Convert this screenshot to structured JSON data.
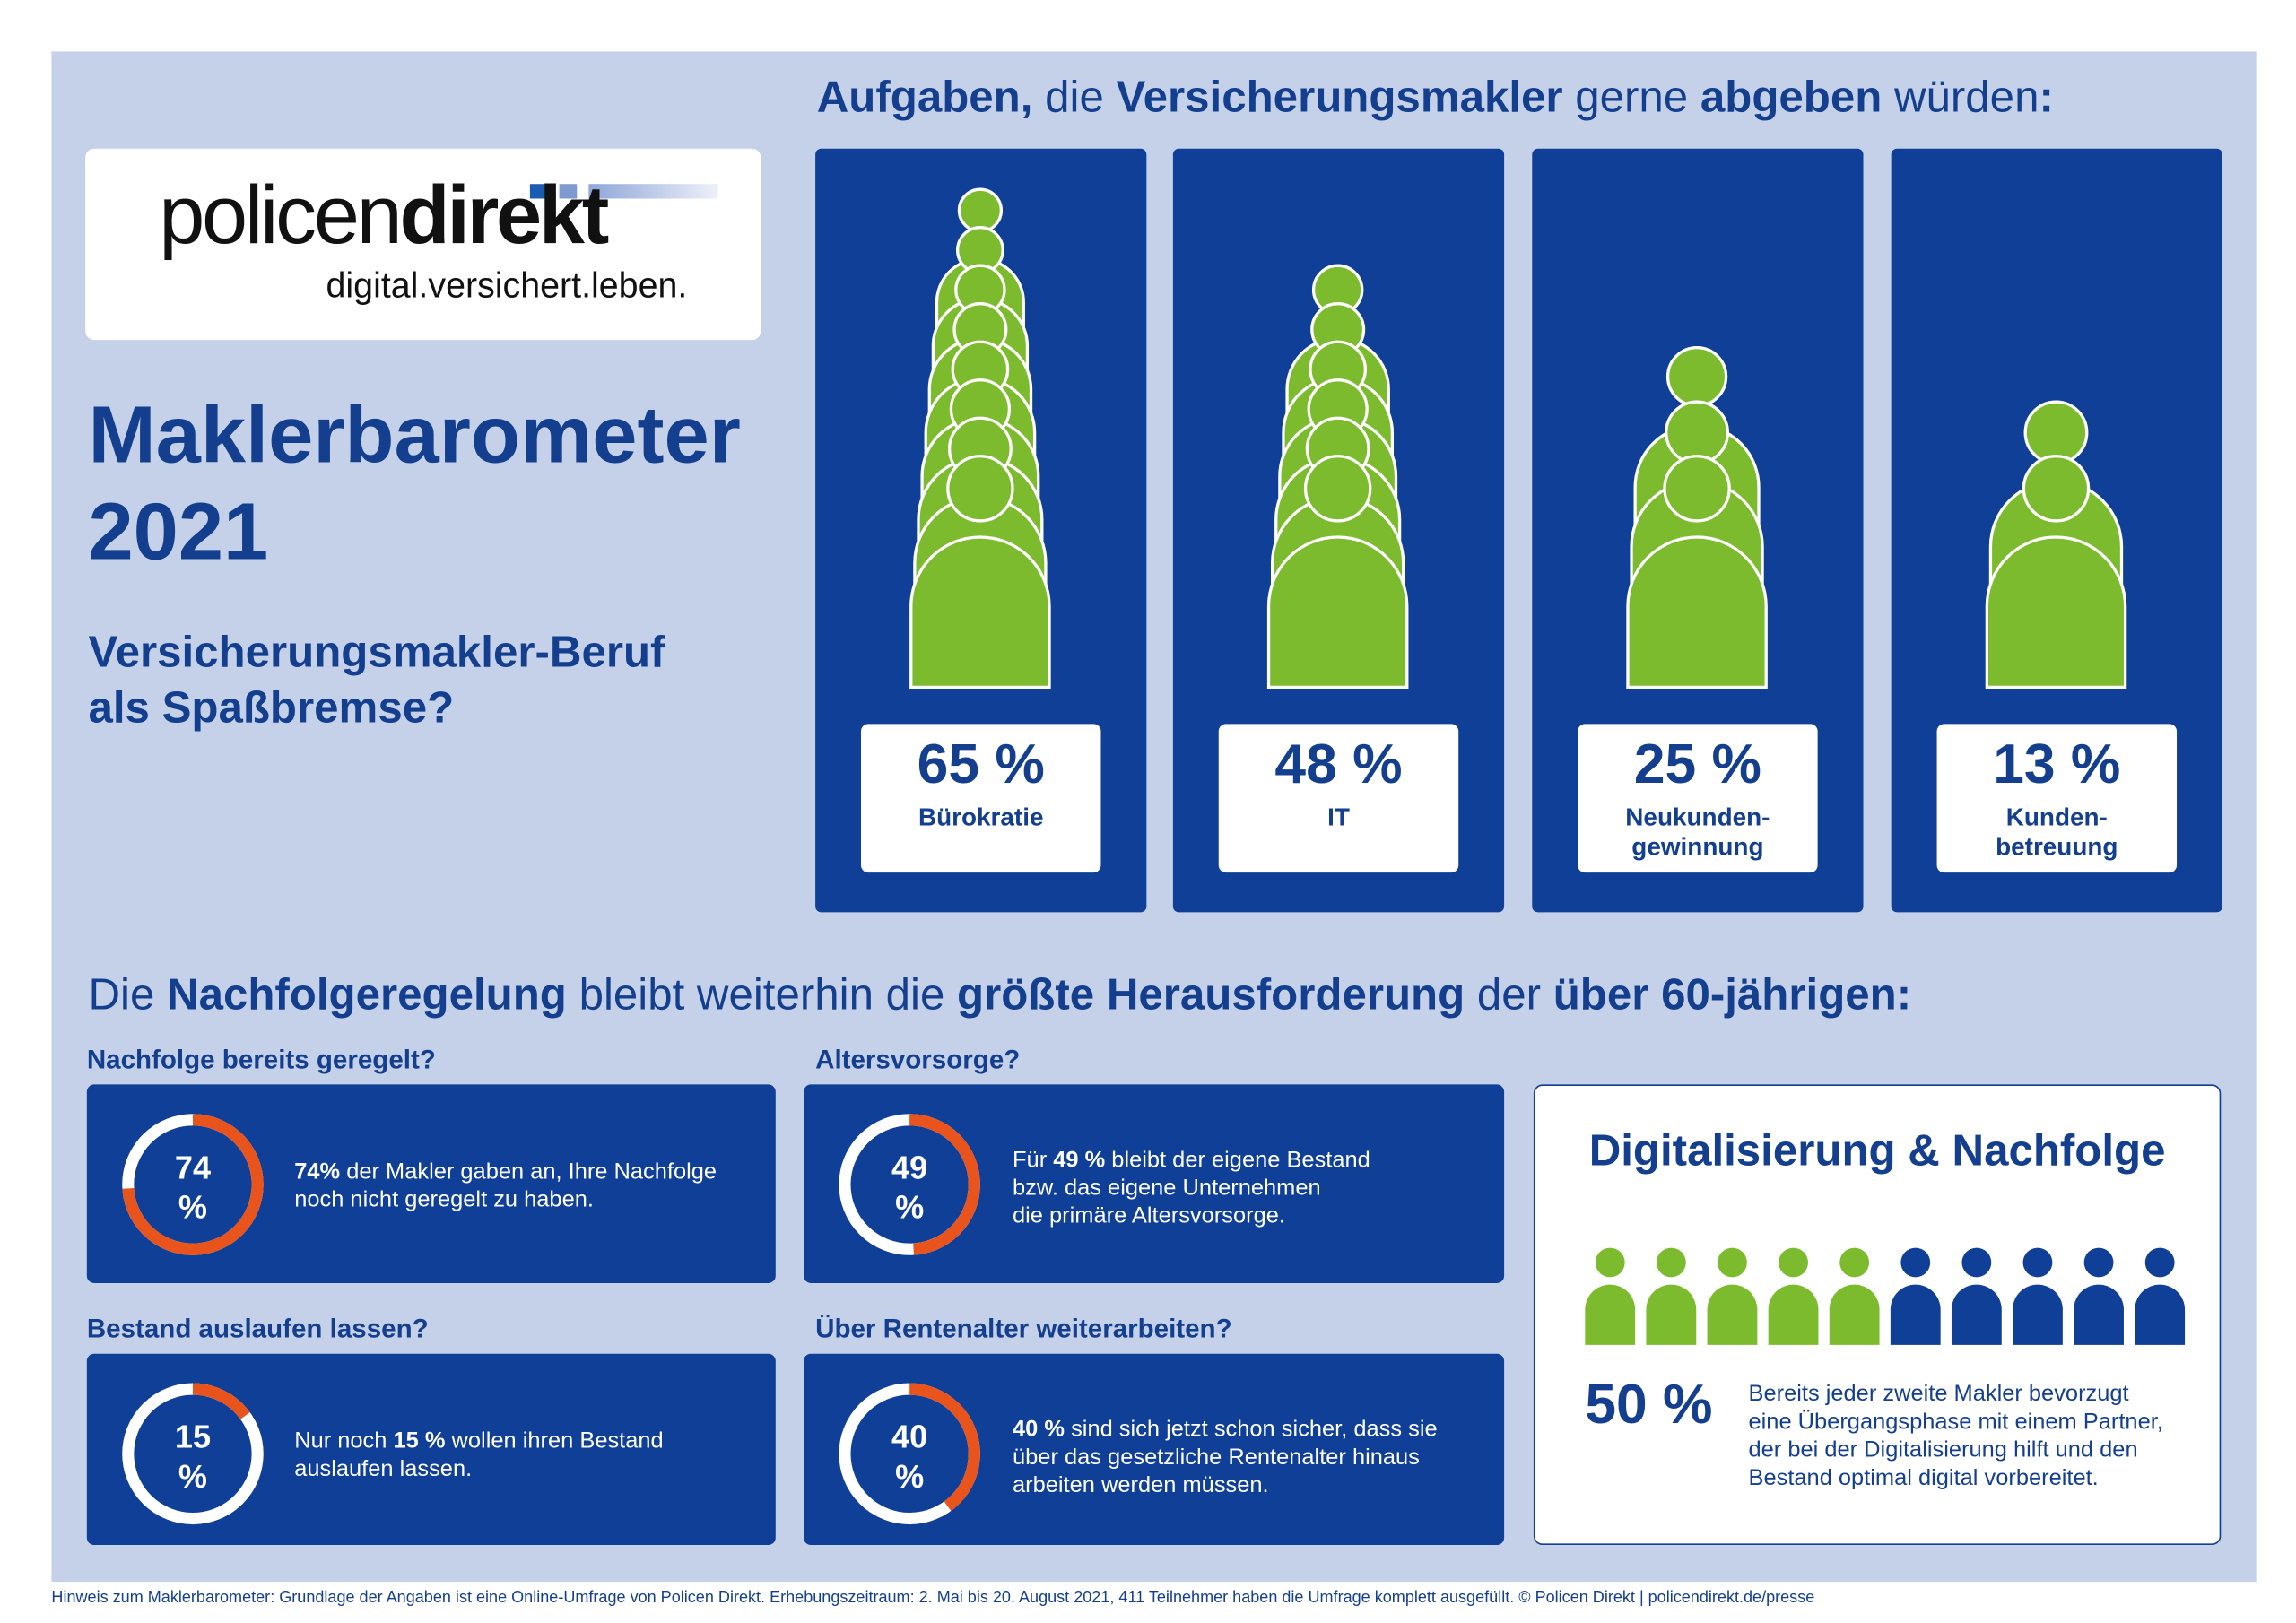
{
  "colors": {
    "panel": "#c5d1e8",
    "dark_blue": "#0f3f96",
    "text_blue": "#143f8f",
    "green": "#7cbb2e",
    "orange": "#e8541c",
    "white": "#ffffff"
  },
  "logo": {
    "word_light": "policen",
    "word_bold": "direkt",
    "tagline": "digital.versichert.leben."
  },
  "title": {
    "line1": "Maklerbarometer",
    "line2": "2021"
  },
  "subtitle": {
    "line1": "Versicherungsmakler-Beruf",
    "line2": "als Spaßbremse?"
  },
  "tasks_heading": {
    "s1": "Aufgaben,",
    "s2": " die ",
    "s3": "Versicherungsmakler",
    "s4": " gerne ",
    "s5": "abgeben",
    "s6": " würden",
    "s7": ":"
  },
  "tasks": [
    {
      "percent": 65,
      "label_pct": "65 %",
      "label": "Bürokratie"
    },
    {
      "percent": 48,
      "label_pct": "48 %",
      "label": "IT"
    },
    {
      "percent": 25,
      "label_pct": "25 %",
      "label": "Neukunden-\ngewinnung"
    },
    {
      "percent": 13,
      "label_pct": "13 %",
      "label": "Kunden-\nbetreuung"
    }
  ],
  "succession_heading": {
    "s1": "Die ",
    "s2": "Nachfolgeregelung",
    "s3": " bleibt weiterhin die ",
    "s4": "größte Herausforderung",
    "s5": " der ",
    "s6": "über 60-jährigen:"
  },
  "stats": [
    {
      "question": "Nachfolge bereits geregelt?",
      "percent": 74,
      "num": "74",
      "unit": "%",
      "pre": "",
      "bold": "74%",
      "post": " der Makler gaben an, Ihre Nachfolge\nnoch nicht geregelt zu haben."
    },
    {
      "question": "Altersvorsorge?",
      "percent": 49,
      "num": "49",
      "unit": "%",
      "pre": "Für ",
      "bold": "49 %",
      "post": " bleibt der eigene Bestand\nbzw. das eigene Unternehmen\ndie primäre Altersvorsorge."
    },
    {
      "question": "Bestand auslaufen lassen?",
      "percent": 15,
      "num": "15",
      "unit": "%",
      "pre": "Nur noch ",
      "bold": "15 %",
      "post": " wollen ihren Bestand\nauslaufen lassen."
    },
    {
      "question": "Über Rentenalter weiterarbeiten?",
      "percent": 40,
      "num": "40",
      "unit": "%",
      "pre": "",
      "bold": "40 %",
      "post": " sind sich jetzt schon sicher, dass sie\nüber das gesetzliche Rentenalter hinaus\narbeiten werden müssen."
    }
  ],
  "digital": {
    "title": "Digitalisierung & Nachfolge",
    "percent": 50,
    "icons_total": 10,
    "icons_highlighted": 5,
    "value": "50 %",
    "text": "Bereits jeder zweite Makler bevorzugt\neine Übergangsphase mit einem Partner,\nder bei der Digitalisierung hilft und den\nBestand optimal digital vorbereitet."
  },
  "footer": "Hinweis zum Maklerbarometer: Grundlage der Angaben ist eine Online-Umfrage von Policen Direkt. Erhebungszeitraum: 2. Mai bis 20. August 2021, 411 Teilnehmer haben die Umfrage komplett ausgefüllt. © Policen Direkt | policendirekt.de/presse"
}
